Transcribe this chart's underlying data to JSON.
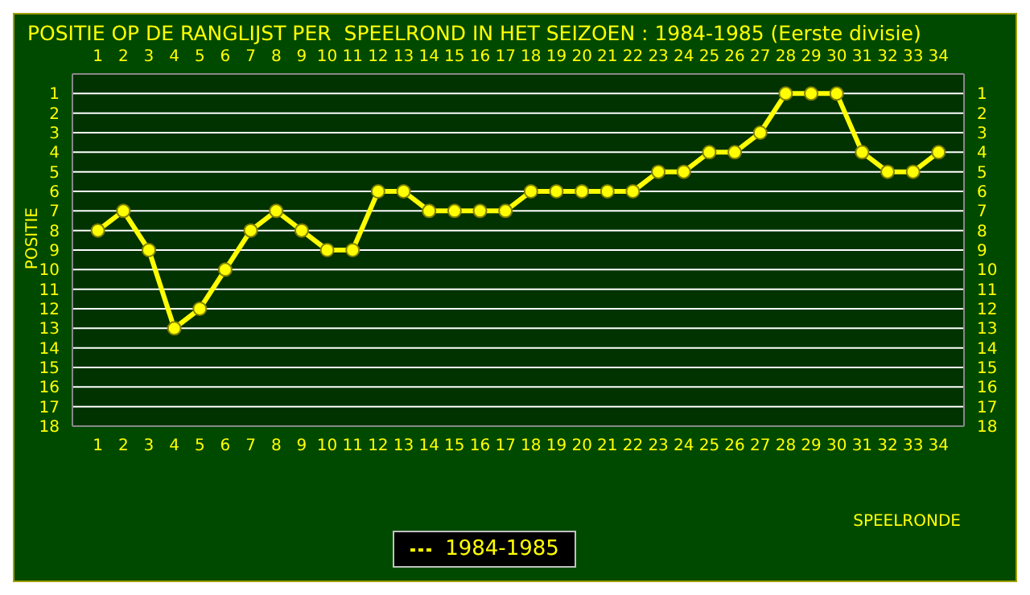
{
  "chart_data": {
    "type": "line",
    "title": "POSITIE OP DE RANGLIJST PER  SPEELROND IN HET SEIZOEN : 1984-1985 (Eerste divisie)",
    "xlabel": "SPEELRONDE",
    "ylabel": "POSITIE",
    "x": [
      1,
      2,
      3,
      4,
      5,
      6,
      7,
      8,
      9,
      10,
      11,
      12,
      13,
      14,
      15,
      16,
      17,
      18,
      19,
      20,
      21,
      22,
      23,
      24,
      25,
      26,
      27,
      28,
      29,
      30,
      31,
      32,
      33,
      34
    ],
    "series": [
      {
        "name": "1984-1985",
        "color": "#ffff00",
        "values": [
          8,
          7,
          9,
          13,
          12,
          10,
          8,
          7,
          8,
          9,
          9,
          6,
          6,
          7,
          7,
          7,
          7,
          6,
          6,
          6,
          6,
          6,
          5,
          5,
          4,
          4,
          3,
          1,
          1,
          1,
          4,
          5,
          5,
          4
        ]
      }
    ],
    "xlim": [
      0,
      35
    ],
    "xticks": [
      1,
      2,
      3,
      4,
      5,
      6,
      7,
      8,
      9,
      10,
      11,
      12,
      13,
      14,
      15,
      16,
      17,
      18,
      19,
      20,
      21,
      22,
      23,
      24,
      25,
      26,
      27,
      28,
      29,
      30,
      31,
      32,
      33,
      34
    ],
    "x2lim": [
      0,
      35
    ],
    "x2ticks": [
      1,
      2,
      3,
      4,
      5,
      6,
      7,
      8,
      9,
      10,
      11,
      12,
      13,
      14,
      15,
      16,
      17,
      18,
      19,
      20,
      21,
      22,
      23,
      24,
      25,
      26,
      27,
      28,
      29,
      30,
      31,
      32,
      33,
      34
    ],
    "ylim": [
      18,
      0
    ],
    "yticks": [
      1,
      2,
      3,
      4,
      5,
      6,
      7,
      8,
      9,
      10,
      11,
      12,
      13,
      14,
      15,
      16,
      17,
      18
    ],
    "y2lim": [
      18,
      0
    ],
    "y2ticks": [
      1,
      2,
      3,
      4,
      5,
      6,
      7,
      8,
      9,
      10,
      11,
      12,
      13,
      14,
      15,
      16,
      17,
      18
    ],
    "grid": "y",
    "legend": "bottom",
    "marker": "circle",
    "line_style": "solid"
  }
}
